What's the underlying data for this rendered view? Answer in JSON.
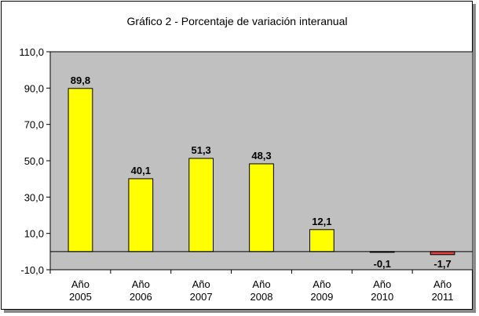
{
  "chart_data": {
    "type": "bar",
    "title": "Gráfico 2 - Porcentaje de variación interanual",
    "categories": [
      [
        "Año",
        "2005"
      ],
      [
        "Año",
        "2006"
      ],
      [
        "Año",
        "2007"
      ],
      [
        "Año",
        "2008"
      ],
      [
        "Año",
        "2009"
      ],
      [
        "Año",
        "2010"
      ],
      [
        "Año",
        "2011"
      ]
    ],
    "values": [
      89.8,
      40.1,
      51.3,
      48.3,
      12.1,
      -0.1,
      -1.7
    ],
    "data_labels": [
      "89,8",
      "40,1",
      "51,3",
      "48,3",
      "12,1",
      "-0,1",
      "-1,7"
    ],
    "ylim": [
      -10,
      110
    ],
    "yticks": [
      -10,
      10,
      30,
      50,
      70,
      90,
      110
    ],
    "ytick_labels": [
      "-10,0",
      "10,0",
      "30,0",
      "50,0",
      "70,0",
      "90,0",
      "110,0"
    ],
    "grid": false,
    "legend": "none",
    "colors": {
      "plot_background": "#c0c0c0",
      "positive_bar": "#ffff00",
      "negative_bar": "#e04040",
      "bar_edge": "#000000"
    }
  }
}
